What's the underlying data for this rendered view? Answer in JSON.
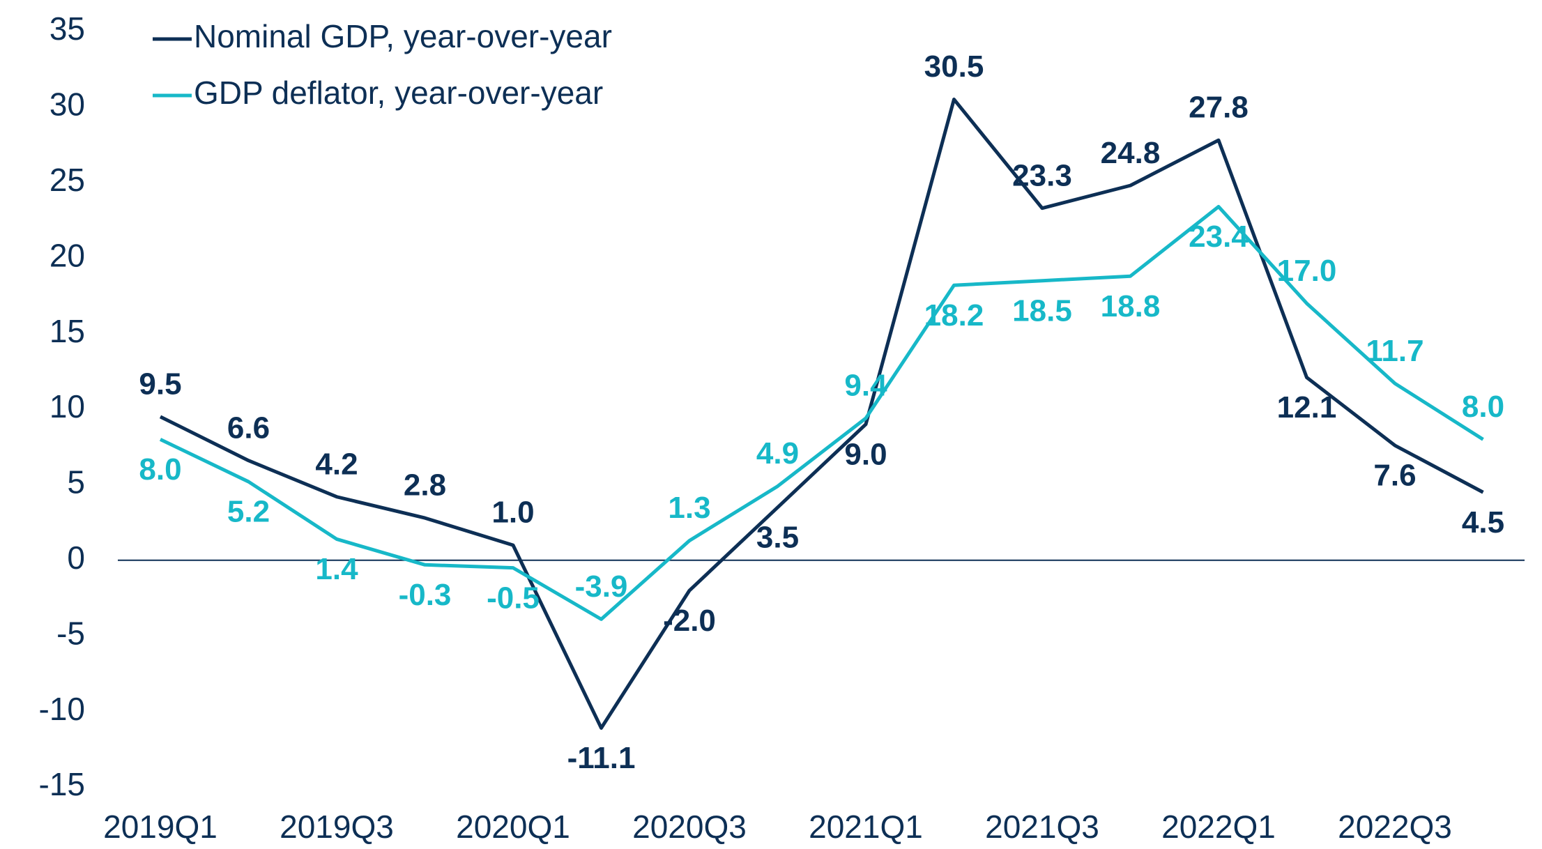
{
  "chart_data": {
    "type": "line",
    "categories": [
      "2019Q1",
      null,
      "2019Q3",
      null,
      "2020Q1",
      null,
      "2020Q3",
      null,
      "2021Q1",
      null,
      "2021Q3",
      null,
      "2022Q1",
      null,
      "2022Q3",
      null
    ],
    "series": [
      {
        "name": "Nominal GDP, year-over-year",
        "color": "#0d2f55",
        "values": [
          9.5,
          6.6,
          4.2,
          2.8,
          1.0,
          -11.1,
          -2.0,
          3.5,
          9.0,
          30.5,
          23.3,
          24.8,
          27.8,
          12.1,
          7.6,
          4.5
        ],
        "value_labels": [
          "9.5",
          "6.6",
          "4.2",
          "2.8",
          "1.0",
          "-11.1",
          "-2.0",
          "3.5",
          "9.0",
          "30.5",
          "23.3",
          "24.8",
          "27.8",
          "12.1",
          "7.6",
          "4.5"
        ]
      },
      {
        "name": "GDP deflator, year-over-year",
        "color": "#17b8c8",
        "values": [
          8.0,
          5.2,
          1.4,
          -0.3,
          -0.5,
          -3.9,
          1.3,
          4.9,
          9.4,
          18.2,
          18.5,
          18.8,
          23.4,
          17.0,
          11.7,
          8.0
        ],
        "value_labels": [
          "8.0",
          "5.2",
          "1.4",
          "-0.3",
          "-0.5",
          "-3.9",
          "1.3",
          "4.9",
          "9.4",
          "18.2",
          "18.5",
          "18.8",
          "23.4",
          "17.0",
          "11.7",
          "8.0"
        ]
      }
    ],
    "ylim": [
      -15,
      35
    ],
    "yticks": [
      -15,
      -10,
      -5,
      0,
      5,
      10,
      15,
      20,
      25,
      30,
      35
    ],
    "grid": false,
    "legend": "top-left"
  }
}
